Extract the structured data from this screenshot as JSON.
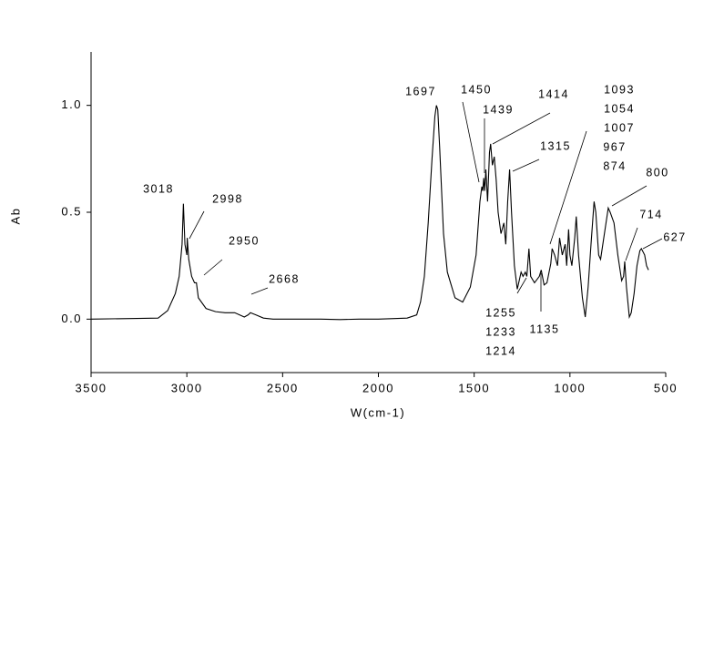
{
  "chart_data": {
    "type": "line",
    "x_label": "W(cm-1)",
    "y_label": "Ab",
    "xlim": [
      3500,
      500
    ],
    "xticks": [
      3500,
      3000,
      2500,
      2000,
      1500,
      1000,
      500
    ],
    "ylim": [
      -0.25,
      1.25
    ],
    "yticks": [
      {
        "value": 0,
        "label": "0.0"
      },
      {
        "value": 0.5,
        "label": "0.5"
      },
      {
        "value": 1,
        "label": "1.0"
      }
    ],
    "color": "#000000",
    "annotations": [
      "3018",
      "2998",
      "2950",
      "2668",
      "1697",
      "1450",
      "1414",
      "1439",
      "1315",
      "1093",
      "1054",
      "1007",
      "967",
      "874",
      "800",
      "714",
      "627",
      "1255",
      "1233",
      "1214",
      "1135"
    ],
    "x": [
      3500,
      3150,
      3100,
      3060,
      3040,
      3025,
      3018,
      3010,
      3000,
      2998,
      2990,
      2975,
      2960,
      2950,
      2940,
      2900,
      2850,
      2800,
      2750,
      2700,
      2680,
      2668,
      2640,
      2600,
      2550,
      2300,
      2200,
      2100,
      2000,
      1850,
      1800,
      1780,
      1760,
      1740,
      1720,
      1705,
      1697,
      1690,
      1680,
      1660,
      1640,
      1600,
      1560,
      1520,
      1490,
      1470,
      1460,
      1455,
      1450,
      1445,
      1439,
      1430,
      1420,
      1414,
      1405,
      1395,
      1385,
      1375,
      1360,
      1345,
      1335,
      1325,
      1315,
      1305,
      1290,
      1275,
      1265,
      1255,
      1245,
      1233,
      1225,
      1214,
      1205,
      1185,
      1160,
      1150,
      1135,
      1120,
      1100,
      1093,
      1080,
      1065,
      1054,
      1040,
      1025,
      1017,
      1007,
      1000,
      990,
      975,
      967,
      955,
      935,
      920,
      905,
      890,
      874,
      865,
      850,
      840,
      820,
      800,
      790,
      770,
      750,
      730,
      720,
      714,
      705,
      690,
      680,
      665,
      650,
      635,
      627,
      610,
      600,
      590
    ],
    "values": [
      0,
      0.005,
      0.04,
      0.12,
      0.2,
      0.35,
      0.54,
      0.35,
      0.3,
      0.38,
      0.28,
      0.2,
      0.17,
      0.17,
      0.1,
      0.05,
      0.035,
      0.03,
      0.03,
      0.01,
      0.02,
      0.03,
      0.02,
      0.005,
      0,
      0,
      -0.002,
      0,
      0,
      0.005,
      0.02,
      0.08,
      0.2,
      0.45,
      0.75,
      0.95,
      1.0,
      0.98,
      0.8,
      0.4,
      0.22,
      0.1,
      0.08,
      0.15,
      0.3,
      0.55,
      0.62,
      0.6,
      0.66,
      0.6,
      0.7,
      0.55,
      0.78,
      0.82,
      0.72,
      0.76,
      0.65,
      0.5,
      0.4,
      0.45,
      0.35,
      0.55,
      0.7,
      0.5,
      0.25,
      0.14,
      0.18,
      0.22,
      0.2,
      0.22,
      0.2,
      0.33,
      0.2,
      0.17,
      0.2,
      0.23,
      0.16,
      0.17,
      0.26,
      0.33,
      0.3,
      0.25,
      0.38,
      0.3,
      0.35,
      0.25,
      0.42,
      0.3,
      0.25,
      0.38,
      0.48,
      0.3,
      0.1,
      0.01,
      0.15,
      0.35,
      0.55,
      0.5,
      0.3,
      0.28,
      0.4,
      0.52,
      0.5,
      0.45,
      0.3,
      0.18,
      0.2,
      0.27,
      0.15,
      0.01,
      0.03,
      0.12,
      0.25,
      0.32,
      0.33,
      0.3,
      0.25,
      0.23
    ]
  }
}
